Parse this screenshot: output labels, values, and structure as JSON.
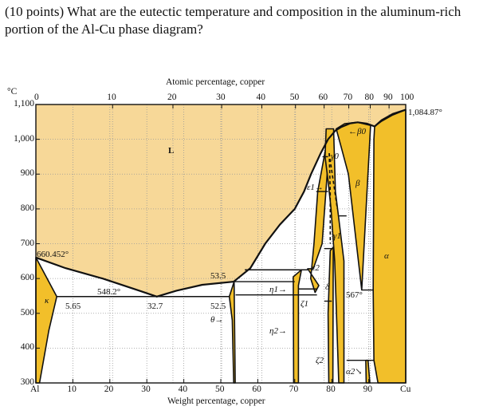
{
  "question": "(10 points) What are the eutectic temperature and composition in the aluminum-rich portion of the Al-Cu phase diagram?",
  "diagram": {
    "top_axis_title": "Atomic percentage, copper",
    "bottom_axis_title": "Weight percentage, copper",
    "temp_unit": "°C",
    "y_ticks": [
      "1,100",
      "1,000",
      "900",
      "800",
      "700",
      "600",
      "500",
      "400",
      "300"
    ],
    "y_tick_values": [
      1100,
      1000,
      900,
      800,
      700,
      600,
      500,
      400,
      300
    ],
    "bottom_ticks": [
      "Al",
      "10",
      "20",
      "30",
      "40",
      "50",
      "60",
      "70",
      "80",
      "90",
      "Cu"
    ],
    "top_ticks": [
      "0",
      "10",
      "20",
      "30",
      "40",
      "50",
      "60",
      "70",
      "80",
      "90",
      "100"
    ],
    "colors": {
      "liquid": "#f7d898",
      "single_phase": "#f2bf2a",
      "two_phase": "#ffffff",
      "line": "#111111"
    },
    "labels": {
      "cu_melting": "1,084.87°",
      "al_melting": "660.452°",
      "eutectic_temp": "548.2°",
      "alpha_solubility": "5.65",
      "eutectic_comp": "32.7",
      "theta_left": "52.5",
      "theta_top": "53.5",
      "eutectoid": "567°",
      "liquid": "L",
      "kappa": "κ",
      "theta": "θ→",
      "eta1": "η1→",
      "eta2": "η2→",
      "zeta1": "ζ1",
      "zeta2": "ζ2",
      "eps1": "ε1→",
      "eps2": "ε2",
      "gamma0": "γ0",
      "gamma1": "γ1",
      "beta0": "←β0",
      "beta": "β",
      "alpha": "α",
      "alpha2": "α2↘",
      "delta": "δ"
    }
  }
}
